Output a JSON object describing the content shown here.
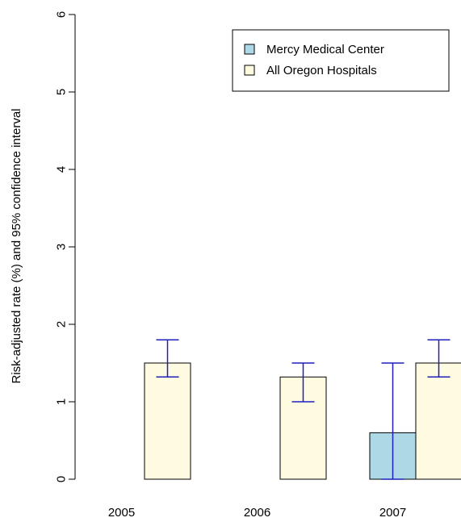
{
  "chart_data": {
    "type": "bar",
    "title": "",
    "xlabel": "",
    "ylabel": "Risk-adjusted rate (%) and 95% confidence interval",
    "ylim": [
      0,
      6
    ],
    "yticks": [
      "0",
      "1",
      "2",
      "3",
      "4",
      "5",
      "6"
    ],
    "categories": [
      "2005",
      "2006",
      "2007"
    ],
    "grid": false,
    "legend_position": "top-right",
    "error_bar_color": "#1f1fbf",
    "series": [
      {
        "name": "Mercy Medical Center",
        "color": "#add8e6",
        "values": [
          null,
          null,
          0.6
        ],
        "ci_low": [
          null,
          null,
          0.0
        ],
        "ci_high": [
          null,
          null,
          1.5
        ]
      },
      {
        "name": "All Oregon Hospitals",
        "color": "#fffbe0",
        "values": [
          1.5,
          1.32,
          1.5
        ],
        "ci_low": [
          1.32,
          1.0,
          1.32
        ],
        "ci_high": [
          1.8,
          1.5,
          1.8
        ]
      }
    ]
  }
}
